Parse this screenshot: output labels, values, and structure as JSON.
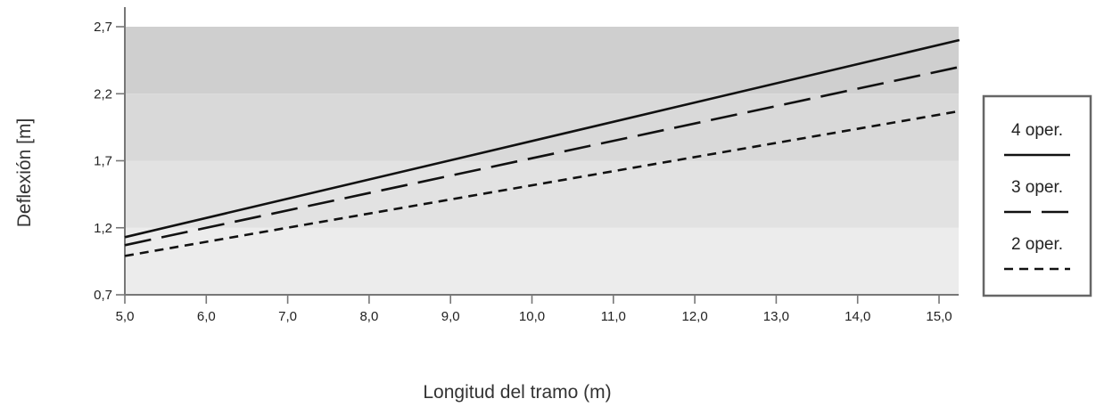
{
  "chart_data": {
    "type": "line",
    "title": "",
    "xlabel": "Longitud del tramo (m)",
    "ylabel": "Deflexión [m]",
    "xlim": [
      5.0,
      15.25
    ],
    "ylim": [
      0.7,
      2.7
    ],
    "xticks": [
      "5,0",
      "6,0",
      "7,0",
      "8,0",
      "9,0",
      "10,0",
      "11,0",
      "12,0",
      "13,0",
      "14,0",
      "15,0"
    ],
    "yticks": [
      "0,7",
      "1,2",
      "1,7",
      "2,2",
      "2,7"
    ],
    "bands": [
      {
        "from": 0.7,
        "to": 1.2,
        "color": "#ececec"
      },
      {
        "from": 1.2,
        "to": 1.7,
        "color": "#e2e2e2"
      },
      {
        "from": 1.7,
        "to": 2.2,
        "color": "#d9d9d9"
      },
      {
        "from": 2.2,
        "to": 2.7,
        "color": "#cfcfcf"
      }
    ],
    "series": [
      {
        "name": "4 oper.",
        "style": "solid",
        "x": [
          5.0,
          15.25
        ],
        "y": [
          1.13,
          2.6
        ]
      },
      {
        "name": "3 oper.",
        "style": "long-dash",
        "x": [
          5.0,
          15.25
        ],
        "y": [
          1.07,
          2.4
        ]
      },
      {
        "name": "2 oper.",
        "style": "short-dash",
        "x": [
          5.0,
          15.25
        ],
        "y": [
          0.99,
          2.07
        ]
      }
    ],
    "legend": "right",
    "grid": false
  }
}
